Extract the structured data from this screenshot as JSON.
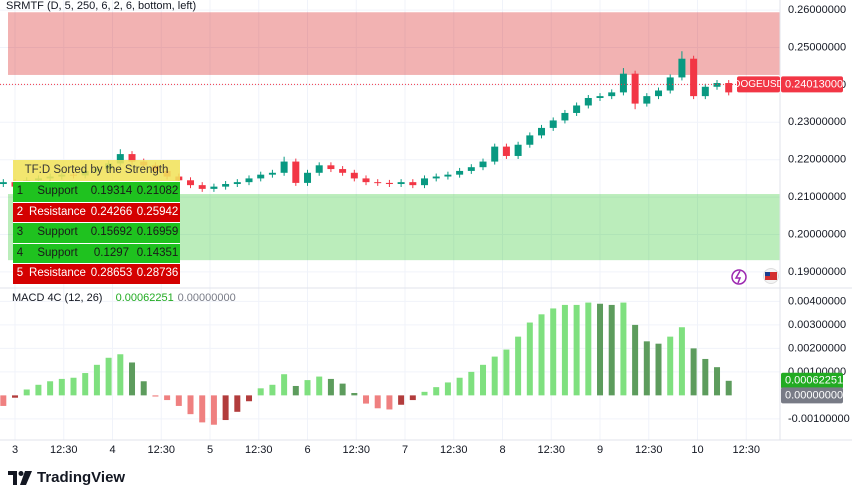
{
  "chart_data": [
    {
      "type": "candlestick",
      "title": "SRMTF (D, 5, 250, 6, 2, 6, bottom, left)",
      "symbol": "DOGEUSD",
      "up_color": "#089981",
      "down_color": "#f23645",
      "grid": true,
      "xlim": [
        2.846,
        10.846
      ],
      "ylim": [
        0.1865,
        0.2627
      ],
      "yticks": [
        {
          "value": 0.26,
          "label": "0.26000000"
        },
        {
          "value": 0.25,
          "label": "0.25000000"
        },
        {
          "value": 0.24,
          "label": "0.24000000"
        },
        {
          "value": 0.23,
          "label": "0.23000000"
        },
        {
          "value": 0.22,
          "label": "0.22000000"
        },
        {
          "value": 0.21,
          "label": "0.21000000"
        },
        {
          "value": 0.2,
          "label": "0.20000000"
        },
        {
          "value": 0.19,
          "label": "0.19000000"
        }
      ],
      "last_price": {
        "value": 0.24013,
        "label": "0.24013000"
      },
      "x": [
        2.88,
        3,
        3.12,
        3.24,
        3.36,
        3.48,
        3.6,
        3.72,
        3.84,
        3.96,
        4.08,
        4.2,
        4.32,
        4.44,
        4.56,
        4.68,
        4.8,
        4.92,
        5.04,
        5.16,
        5.28,
        5.4,
        5.52,
        5.64,
        5.76,
        5.88,
        6,
        6.12,
        6.24,
        6.36,
        6.48,
        6.6,
        6.72,
        6.84,
        6.96,
        7.08,
        7.2,
        7.32,
        7.44,
        7.56,
        7.68,
        7.8,
        7.92,
        8.04,
        8.16,
        8.28,
        8.4,
        8.52,
        8.64,
        8.76,
        8.88,
        9,
        9.12,
        9.24,
        9.36,
        9.48,
        9.6,
        9.72,
        9.84,
        9.96,
        10.08,
        10.2,
        10.32
      ],
      "open": [
        0.2135,
        0.214,
        0.2128,
        0.2145,
        0.215,
        0.2155,
        0.216,
        0.2158,
        0.217,
        0.2175,
        0.219,
        0.2215,
        0.2195,
        0.2185,
        0.217,
        0.2155,
        0.2145,
        0.2132,
        0.2122,
        0.2128,
        0.2135,
        0.214,
        0.215,
        0.216,
        0.2165,
        0.2195,
        0.2138,
        0.2165,
        0.2185,
        0.2175,
        0.2165,
        0.215,
        0.214,
        0.2138,
        0.2135,
        0.214,
        0.2132,
        0.215,
        0.2155,
        0.216,
        0.217,
        0.218,
        0.2195,
        0.2235,
        0.221,
        0.224,
        0.2265,
        0.2285,
        0.2305,
        0.2325,
        0.2345,
        0.2365,
        0.237,
        0.238,
        0.243,
        0.235,
        0.237,
        0.2385,
        0.242,
        0.247,
        0.237,
        0.2395,
        0.2405
      ],
      "high": [
        0.2148,
        0.2148,
        0.2153,
        0.2158,
        0.2163,
        0.2168,
        0.2168,
        0.2178,
        0.2183,
        0.2198,
        0.2228,
        0.2223,
        0.2203,
        0.2193,
        0.2178,
        0.2163,
        0.2153,
        0.214,
        0.2136,
        0.2143,
        0.2148,
        0.2158,
        0.2168,
        0.2173,
        0.2208,
        0.2203,
        0.2173,
        0.2193,
        0.2193,
        0.2183,
        0.2173,
        0.2158,
        0.2148,
        0.2146,
        0.2148,
        0.2148,
        0.2158,
        0.2163,
        0.2168,
        0.2178,
        0.2188,
        0.2203,
        0.2243,
        0.2243,
        0.2248,
        0.2273,
        0.2293,
        0.2313,
        0.2333,
        0.2353,
        0.2373,
        0.2378,
        0.2388,
        0.2445,
        0.2438,
        0.2378,
        0.2393,
        0.2428,
        0.249,
        0.2478,
        0.2403,
        0.2413,
        0.2413
      ],
      "low": [
        0.2127,
        0.212,
        0.212,
        0.2137,
        0.2142,
        0.2147,
        0.215,
        0.215,
        0.2162,
        0.2167,
        0.2182,
        0.2187,
        0.2177,
        0.2162,
        0.2147,
        0.2137,
        0.2124,
        0.2114,
        0.2114,
        0.212,
        0.2127,
        0.2132,
        0.2142,
        0.2152,
        0.2157,
        0.213,
        0.213,
        0.2157,
        0.2167,
        0.2157,
        0.2142,
        0.2132,
        0.213,
        0.2127,
        0.2127,
        0.2124,
        0.2124,
        0.2142,
        0.2147,
        0.2152,
        0.2162,
        0.2172,
        0.2187,
        0.2202,
        0.2202,
        0.2232,
        0.2257,
        0.2277,
        0.2297,
        0.2317,
        0.2337,
        0.2357,
        0.2362,
        0.2372,
        0.2335,
        0.2342,
        0.2362,
        0.2377,
        0.2412,
        0.2362,
        0.2362,
        0.2387,
        0.2372
      ],
      "close": [
        0.214,
        0.2128,
        0.2145,
        0.215,
        0.2155,
        0.216,
        0.2158,
        0.217,
        0.2175,
        0.219,
        0.2215,
        0.2195,
        0.2185,
        0.217,
        0.2155,
        0.2145,
        0.2132,
        0.2122,
        0.2128,
        0.2135,
        0.214,
        0.215,
        0.216,
        0.2165,
        0.2195,
        0.2138,
        0.2165,
        0.2185,
        0.2175,
        0.2165,
        0.215,
        0.214,
        0.2138,
        0.2135,
        0.214,
        0.2132,
        0.215,
        0.2155,
        0.216,
        0.217,
        0.218,
        0.2195,
        0.2235,
        0.221,
        0.224,
        0.2265,
        0.2285,
        0.2305,
        0.2325,
        0.2345,
        0.2365,
        0.237,
        0.238,
        0.243,
        0.235,
        0.237,
        0.2385,
        0.242,
        0.247,
        0.237,
        0.2395,
        0.2405,
        0.238
      ]
    },
    {
      "type": "histogram",
      "title": "MACD 4C (12, 26)",
      "grid": true,
      "macd_value": {
        "value": 0.00062251,
        "label": "0.00062251"
      },
      "signal_value": {
        "value": 0,
        "label": "0.00000000"
      },
      "colors": {
        "pos_up": "#7fe07f",
        "pos_down": "#5d9c5d",
        "neg_down": "#ef8080",
        "neg_up": "#b23c3c"
      },
      "value_color": "#22ab22",
      "signal_color": "#787b86",
      "xlim": [
        2.846,
        10.846
      ],
      "ylim": [
        -0.0019,
        0.0044
      ],
      "yticks": [
        {
          "value": 0.004,
          "label": "0.00400000"
        },
        {
          "value": 0.003,
          "label": "0.00300000"
        },
        {
          "value": 0.002,
          "label": "0.00200000"
        },
        {
          "value": 0.001,
          "label": "0.00100000"
        },
        {
          "value": -0.001,
          "label": "-0.00100000"
        }
      ],
      "xticks": [
        3,
        {
          "value": 3.5,
          "label": "12:30"
        },
        4,
        {
          "value": 4.5,
          "label": "12:30"
        },
        5,
        {
          "value": 5.5,
          "label": "12:30"
        },
        6,
        {
          "value": 6.5,
          "label": "12:30"
        },
        7,
        {
          "value": 7.5,
          "label": "12:30"
        },
        8,
        {
          "value": 8.5,
          "label": "12:30"
        },
        9,
        {
          "value": 9.5,
          "label": "12:30"
        },
        10,
        {
          "value": 10.5,
          "label": "12:30"
        }
      ],
      "x": [
        2.88,
        3,
        3.12,
        3.24,
        3.36,
        3.48,
        3.6,
        3.72,
        3.84,
        3.96,
        4.08,
        4.2,
        4.32,
        4.44,
        4.56,
        4.68,
        4.8,
        4.92,
        5.04,
        5.16,
        5.28,
        5.4,
        5.52,
        5.64,
        5.76,
        5.88,
        6,
        6.12,
        6.24,
        6.36,
        6.48,
        6.6,
        6.72,
        6.84,
        6.96,
        7.08,
        7.2,
        7.32,
        7.44,
        7.56,
        7.68,
        7.8,
        7.92,
        8.04,
        8.16,
        8.28,
        8.4,
        8.52,
        8.64,
        8.76,
        8.88,
        9,
        9.12,
        9.24,
        9.36,
        9.48,
        9.6,
        9.72,
        9.84,
        9.96,
        10.08,
        10.2,
        10.32
      ],
      "values": [
        -0.00045,
        -0.0001,
        0.00025,
        0.00045,
        0.0006,
        0.0007,
        0.00075,
        0.00095,
        0.0013,
        0.0016,
        0.00175,
        0.0014,
        0.0006,
        -5e-05,
        -0.0002,
        -0.00045,
        -0.0008,
        -0.00115,
        -0.00125,
        -0.00105,
        -0.0007,
        -0.00025,
        0.0003,
        0.00045,
        0.0009,
        0.0004,
        0.00065,
        0.0008,
        0.0007,
        0.0005,
        0.0001,
        -0.00035,
        -0.00055,
        -0.0006,
        -0.0004,
        -0.0002,
        0.00015,
        0.00035,
        0.00055,
        0.00075,
        0.001,
        0.0013,
        0.00165,
        0.00195,
        0.0025,
        0.0031,
        0.00345,
        0.0037,
        0.00385,
        0.00385,
        0.00395,
        0.0039,
        0.00385,
        0.00395,
        0.003,
        0.0023,
        0.0022,
        0.0025,
        0.0029,
        0.002,
        0.00155,
        0.0012,
        0.00062
      ]
    }
  ],
  "table": {
    "title": "TF:D Sorted by the Strength",
    "header_color": "#f2e35c",
    "row_colors": [
      "#1fc21f",
      "#d40000",
      "#1fc21f",
      "#1fc21f",
      "#d40000"
    ],
    "rows": [
      [
        1,
        "Support",
        0.19314,
        0.21082
      ],
      [
        2,
        "Resistance",
        0.24266,
        0.25942
      ],
      [
        3,
        "Support",
        0.15692,
        0.16959
      ],
      [
        4,
        "Support",
        0.1297,
        0.14351
      ],
      [
        5,
        "Resistance",
        0.28653,
        0.28736
      ]
    ]
  },
  "footer": {
    "logo": "TradingView"
  }
}
